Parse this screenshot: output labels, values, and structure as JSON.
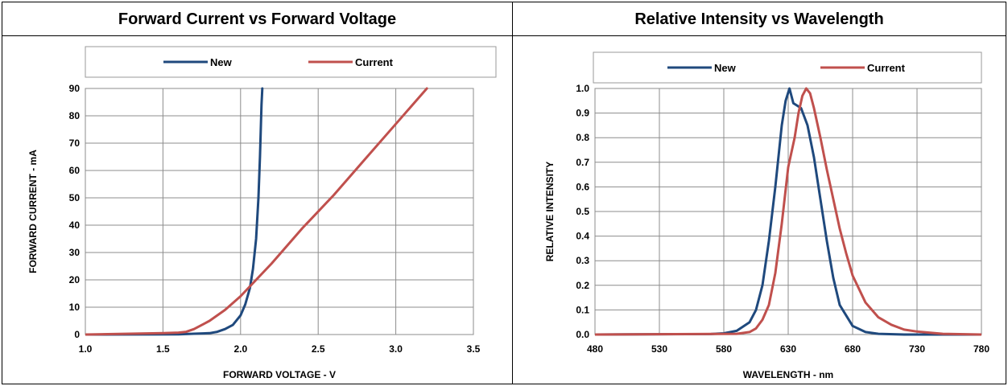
{
  "chart_data": [
    {
      "type": "line",
      "title": "Forward Current vs Forward Voltage",
      "xlabel": "FORWARD VOLTAGE - V",
      "ylabel": "FORWARD CURRENT - mA",
      "xlim": [
        1.0,
        3.5
      ],
      "ylim": [
        0,
        90
      ],
      "x_ticks": [
        "1.0",
        "1.5",
        "2.0",
        "2.5",
        "3.0",
        "3.5"
      ],
      "y_ticks": [
        "0",
        "10",
        "20",
        "30",
        "40",
        "50",
        "60",
        "70",
        "80",
        "90"
      ],
      "grid": true,
      "legend_position": "top",
      "series": [
        {
          "name": "New",
          "color": "#1f497d",
          "x": [
            1.0,
            1.6,
            1.7,
            1.8,
            1.85,
            1.9,
            1.95,
            2.0,
            2.03,
            2.06,
            2.08,
            2.1,
            2.115,
            2.125,
            2.13,
            2.135,
            2.14
          ],
          "y": [
            0,
            0.1,
            0.3,
            0.5,
            1,
            2,
            3.5,
            7,
            11,
            17,
            24,
            35,
            50,
            65,
            75,
            84,
            90
          ]
        },
        {
          "name": "Current",
          "color": "#c0504d",
          "x": [
            1.0,
            1.5,
            1.6,
            1.65,
            1.7,
            1.8,
            1.9,
            2.0,
            2.1,
            2.2,
            2.4,
            2.6,
            2.8,
            3.0,
            3.2
          ],
          "y": [
            0,
            0.5,
            0.7,
            1,
            2,
            5,
            9,
            14,
            20,
            26,
            39,
            51,
            64,
            77,
            90
          ]
        }
      ]
    },
    {
      "type": "line",
      "title": "Relative Intensity vs Wavelength",
      "xlabel": "WAVELENGTH - nm",
      "ylabel": "RELATIVE INTENSITY",
      "xlim": [
        480,
        780
      ],
      "ylim": [
        0,
        1.0
      ],
      "x_ticks": [
        "480",
        "530",
        "580",
        "630",
        "680",
        "730",
        "780"
      ],
      "y_ticks": [
        "0.0",
        "0.1",
        "0.2",
        "0.3",
        "0.4",
        "0.5",
        "0.6",
        "0.7",
        "0.8",
        "0.9",
        "1.0"
      ],
      "grid": true,
      "legend_position": "top",
      "series": [
        {
          "name": "New",
          "color": "#1f497d",
          "x": [
            480,
            570,
            580,
            590,
            600,
            605,
            610,
            615,
            620,
            625,
            628,
            631,
            634,
            637,
            640,
            645,
            650,
            655,
            660,
            665,
            670,
            680,
            690,
            700,
            720,
            780
          ],
          "y": [
            0,
            0.002,
            0.005,
            0.015,
            0.05,
            0.1,
            0.2,
            0.38,
            0.6,
            0.85,
            0.95,
            1.0,
            0.94,
            0.93,
            0.92,
            0.85,
            0.72,
            0.55,
            0.38,
            0.23,
            0.12,
            0.035,
            0.01,
            0.003,
            0.0,
            0.0
          ]
        },
        {
          "name": "Current",
          "color": "#c0504d",
          "x": [
            480,
            590,
            600,
            605,
            610,
            615,
            620,
            625,
            630,
            635,
            638,
            641,
            644,
            647,
            650,
            655,
            660,
            665,
            670,
            675,
            680,
            690,
            700,
            710,
            720,
            730,
            750,
            780
          ],
          "y": [
            0,
            0.003,
            0.01,
            0.025,
            0.06,
            0.12,
            0.25,
            0.45,
            0.68,
            0.8,
            0.9,
            0.97,
            1.0,
            0.98,
            0.92,
            0.8,
            0.67,
            0.55,
            0.43,
            0.33,
            0.24,
            0.13,
            0.07,
            0.04,
            0.02,
            0.012,
            0.003,
            0.0
          ]
        }
      ]
    }
  ]
}
